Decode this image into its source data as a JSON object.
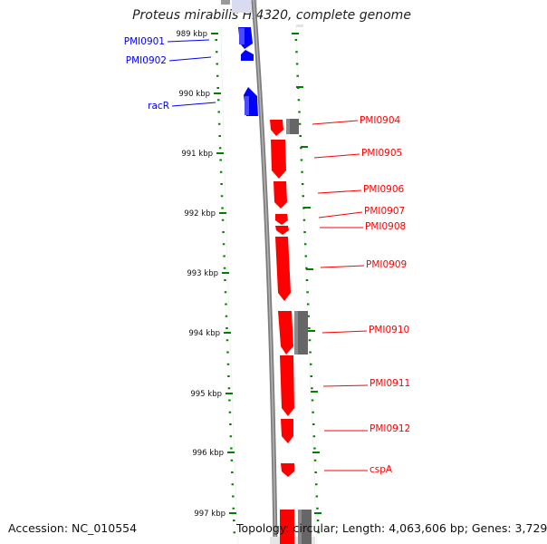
{
  "title": "Proteus mirabilis HI4320, complete genome",
  "footer": {
    "accession": "Accession: NC_010554",
    "summary": "Topology: circular; Length: 4,063,606 bp; Genes: 3,729"
  },
  "colors": {
    "reverse_strand": "#0000ff",
    "forward_strand": "#ff0000",
    "other_feature": "#666666",
    "backbone": "#808080",
    "ticks": "#008000"
  },
  "kbp_ticks": [
    "989 kbp",
    "990 kbp",
    "991 kbp",
    "992 kbp",
    "993 kbp",
    "994 kbp",
    "995 kbp",
    "996 kbp",
    "997 kbp"
  ],
  "reverse_genes": [
    {
      "label": "PMI0901"
    },
    {
      "label": "PMI0902"
    },
    {
      "label": "racR"
    }
  ],
  "forward_genes": [
    {
      "label": "PMI0904"
    },
    {
      "label": "PMI0905"
    },
    {
      "label": "PMI0906"
    },
    {
      "label": "PMI0907"
    },
    {
      "label": "PMI0908"
    },
    {
      "label": "PMI0909"
    },
    {
      "label": "PMI0910"
    },
    {
      "label": "PMI0911"
    },
    {
      "label": "PMI0912"
    },
    {
      "label": "cspA"
    }
  ]
}
